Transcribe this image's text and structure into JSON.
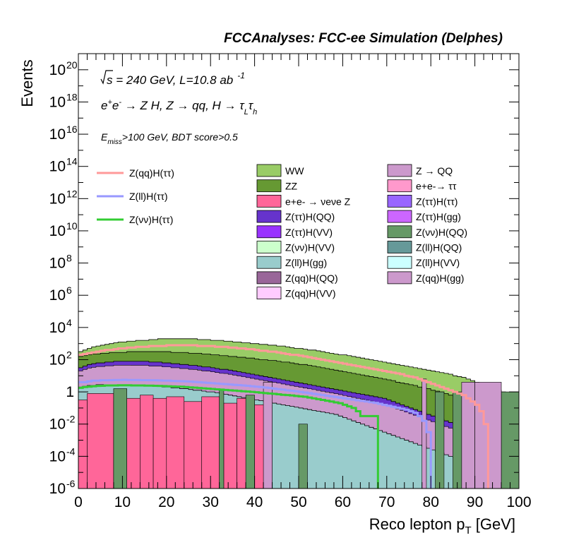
{
  "chart_data": {
    "type": "area",
    "header": "FCCAnalyses: FCC-ee Simulation (Delphes)",
    "xlabel": "Reco lepton p",
    "xlabel_sub": "T",
    "xlabel_unit": " [GeV]",
    "ylabel": "Events",
    "xlim": [
      0,
      100
    ],
    "ylim": [
      1e-06,
      1e+21
    ],
    "yscale": "log",
    "x_ticks": [
      0,
      10,
      20,
      30,
      40,
      50,
      60,
      70,
      80,
      90,
      100
    ],
    "y_ticks": [
      {
        "value": 1e-06,
        "base": "10",
        "exp": "-6"
      },
      {
        "value": 0.0001,
        "base": "10",
        "exp": "-4"
      },
      {
        "value": 0.01,
        "base": "10",
        "exp": "-2"
      },
      {
        "value": 1,
        "base": "1",
        "exp": ""
      },
      {
        "value": 100.0,
        "base": "10",
        "exp": "2"
      },
      {
        "value": 10000.0,
        "base": "10",
        "exp": "4"
      },
      {
        "value": 1000000.0,
        "base": "10",
        "exp": "6"
      },
      {
        "value": 100000000.0,
        "base": "10",
        "exp": "8"
      },
      {
        "value": 10000000000.0,
        "base": "10",
        "exp": "10"
      },
      {
        "value": 1000000000000.0,
        "base": "10",
        "exp": "12"
      },
      {
        "value": 100000000000000.0,
        "base": "10",
        "exp": "14"
      },
      {
        "value": 1e+16,
        "base": "10",
        "exp": "16"
      },
      {
        "value": 1e+18,
        "base": "10",
        "exp": "18"
      },
      {
        "value": 1e+20,
        "base": "10",
        "exp": "20"
      }
    ],
    "annotations": {
      "line1_a": "s",
      "line1_b": " = 240 GeV, L=10.8 ab",
      "line1_c": "-1",
      "line2_a": "e",
      "line2_b": "+",
      "line2_c": "e",
      "line2_d": "-",
      "line2_e": " → Z H, Z  → qq, H  → ",
      "line2_f": "τ",
      "line2_g": "L",
      "line2_h": "τ",
      "line2_i": "h",
      "line3_a": "E",
      "line3_b": "miss",
      "line3_c": ">100 GeV, BDT score>0.5"
    },
    "signal_legend": [
      {
        "name": "Z(qq)H(ττ)",
        "color": "#ff9999"
      },
      {
        "name": "Z(ll)H(ττ)",
        "color": "#9999ff"
      },
      {
        "name": "Z(νν)H(ττ)",
        "color": "#33cc33"
      }
    ],
    "background_legend_col1": [
      {
        "name": "WW",
        "color": "#99cc66"
      },
      {
        "name": "ZZ",
        "color": "#669933"
      },
      {
        "name": "e+e- → νeνe Z",
        "color": "#ff6699"
      },
      {
        "name": "Z(ττ)H(QQ)",
        "color": "#6633cc"
      },
      {
        "name": "Z(ττ)H(VV)",
        "color": "#9933ff"
      },
      {
        "name": "Z(νν)H(VV)",
        "color": "#ccffcc"
      },
      {
        "name": "Z(ll)H(gg)",
        "color": "#99cccc"
      },
      {
        "name": "Z(qq)H(QQ)",
        "color": "#996699"
      },
      {
        "name": "Z(qq)H(VV)",
        "color": "#ffccff"
      }
    ],
    "background_legend_col2": [
      {
        "name": "Z → QQ",
        "color": "#cc99cc"
      },
      {
        "name": "e+e-→ ττ",
        "color": "#ff99cc"
      },
      {
        "name": "Z(ττ)H(ττ)",
        "color": "#9966ff"
      },
      {
        "name": "Z(ττ)H(gg)",
        "color": "#cc66ff"
      },
      {
        "name": "Z(νν)H(QQ)",
        "color": "#669966"
      },
      {
        "name": "Z(ll)H(QQ)",
        "color": "#669999"
      },
      {
        "name": "Z(ll)H(VV)",
        "color": "#ccffff"
      },
      {
        "name": "Z(qq)H(gg)",
        "color": "#cc99cc"
      }
    ],
    "stack_top_log10": [
      2.5,
      2.6,
      2.7,
      2.8,
      2.85,
      2.9,
      2.95,
      3.0,
      3.05,
      3.1,
      3.1,
      3.15,
      3.15,
      3.2,
      3.2,
      3.2,
      3.25,
      3.25,
      3.3,
      3.3,
      3.3,
      3.3,
      3.3,
      3.3,
      3.3,
      3.3,
      3.3,
      3.25,
      3.25,
      3.25,
      3.2,
      3.2,
      3.2,
      3.15,
      3.15,
      3.1,
      3.1,
      3.05,
      3.05,
      3.0,
      3.0,
      2.95,
      2.95,
      2.9,
      2.9,
      2.85,
      2.85,
      2.8,
      2.75,
      2.7,
      2.7,
      2.65,
      2.6,
      2.6,
      2.55,
      2.5,
      2.45,
      2.4,
      2.35,
      2.3,
      2.3,
      2.25,
      2.2,
      2.15,
      2.1,
      2.05,
      2.0,
      1.95,
      1.9,
      1.85,
      1.8,
      1.75,
      1.7,
      1.65,
      1.6,
      1.55,
      1.5,
      1.45,
      1.4,
      1.35,
      1.3,
      1.25,
      1.2,
      1.15,
      1.1,
      1.0,
      0.95,
      0.9,
      0.8,
      0.7,
      0.6,
      0.5,
      0.4,
      0.3,
      0.2,
      0.1,
      0.0,
      -0.1,
      -0.3,
      -0.5
    ],
    "zz_top_log10": [
      2.2,
      2.25,
      2.3,
      2.35,
      2.35,
      2.4,
      2.4,
      2.45,
      2.45,
      2.45,
      2.45,
      2.5,
      2.5,
      2.5,
      2.5,
      2.5,
      2.5,
      2.5,
      2.5,
      2.5,
      2.5,
      2.45,
      2.45,
      2.45,
      2.45,
      2.4,
      2.4,
      2.4,
      2.35,
      2.35,
      2.3,
      2.3,
      2.25,
      2.25,
      2.2,
      2.2,
      2.15,
      2.15,
      2.1,
      2.1,
      2.05,
      2.0,
      2.0,
      1.95,
      1.95,
      1.9,
      1.85,
      1.85,
      1.8,
      1.75,
      1.7,
      1.7,
      1.65,
      1.6,
      1.55,
      1.5,
      1.45,
      1.4,
      1.35,
      1.3,
      1.25,
      1.2,
      1.15,
      1.1,
      1.05,
      1.0,
      0.95,
      0.9,
      0.85,
      0.8,
      0.75,
      0.7,
      0.6,
      0.55,
      0.5,
      0.45,
      0.4,
      0.3,
      0.25,
      0.2,
      0.1,
      0.05,
      0.0,
      -0.1,
      -0.2,
      -0.3,
      -0.4,
      -0.5,
      -0.6,
      -0.7,
      -0.8,
      -0.9,
      -1.0,
      -1.1,
      -1.2,
      -1.3,
      -1.4,
      -1.5,
      -1.6,
      -1.7
    ],
    "mid_top_log10": [
      1.5,
      1.6,
      1.7,
      1.75,
      1.8,
      1.8,
      1.85,
      1.85,
      1.9,
      1.9,
      1.9,
      1.9,
      1.9,
      1.9,
      1.9,
      1.9,
      1.85,
      1.85,
      1.85,
      1.8,
      1.8,
      1.75,
      1.75,
      1.7,
      1.7,
      1.65,
      1.65,
      1.6,
      1.55,
      1.55,
      1.5,
      1.45,
      1.4,
      1.4,
      1.35,
      1.3,
      1.25,
      1.2,
      1.15,
      1.1,
      1.05,
      1.0,
      0.95,
      0.9,
      0.85,
      0.8,
      0.75,
      0.7,
      0.65,
      0.6,
      0.55,
      0.5,
      0.45,
      0.4,
      0.35,
      0.3,
      0.25,
      0.2,
      0.15,
      0.1,
      0.05,
      0.0,
      -0.05,
      -0.1,
      -0.15,
      -0.2,
      -0.25,
      -0.3,
      -0.35,
      -0.4,
      -0.5,
      -0.6,
      -0.7,
      -0.8,
      -0.9,
      -1.0,
      -1.1,
      -1.2,
      -1.3,
      -1.4,
      -1.5,
      -1.6,
      -1.7,
      -1.8,
      -1.9,
      -2.0,
      -2.2,
      -2.4,
      -2.6,
      -2.8,
      -3.0,
      -3.2,
      -3.4,
      -3.6,
      -3.8,
      -4.0,
      -4.2,
      -4.4,
      -4.6,
      -4.8
    ],
    "tealbg_top_log10": [
      0.3,
      0.35,
      0.4,
      0.4,
      0.45,
      0.45,
      0.45,
      0.45,
      0.45,
      0.45,
      0.45,
      0.45,
      0.4,
      0.4,
      0.4,
      0.4,
      0.35,
      0.35,
      0.35,
      0.3,
      0.3,
      0.25,
      0.25,
      0.2,
      0.2,
      0.15,
      0.1,
      0.1,
      0.05,
      0.0,
      0.0,
      -0.05,
      -0.1,
      -0.15,
      -0.2,
      -0.25,
      -0.3,
      -0.35,
      -0.4,
      -0.45,
      -0.5,
      -0.55,
      -0.6,
      -0.65,
      -0.7,
      -0.75,
      -0.8,
      -0.85,
      -0.9,
      -0.95,
      -1.0,
      -1.05,
      -1.1,
      -1.15,
      -1.2,
      -1.25,
      -1.3,
      -1.35,
      -1.4,
      -1.5,
      -1.6,
      -1.7,
      -1.8,
      -1.9,
      -2.0,
      -2.1,
      -2.2,
      -2.3,
      -2.4,
      -2.5,
      -2.6,
      -2.7,
      -2.8,
      -2.9,
      -3.0,
      -3.1,
      -3.2,
      -3.3,
      -3.4,
      -3.5,
      -3.6,
      -3.7,
      -3.8,
      -3.9,
      -4.0,
      -4.1,
      -4.2,
      -4.3,
      -4.4,
      -4.5,
      -4.6,
      -4.7,
      -4.8,
      -4.9,
      -5.0,
      -5.1,
      -5.2,
      -5.3,
      -5.4,
      -5.5
    ],
    "pink_bins": [
      {
        "x0": 0,
        "x1": 2,
        "top": -0.5,
        "color": "#ff6699"
      },
      {
        "x0": 2,
        "x1": 8,
        "top": -0.1,
        "color": "#ff6699"
      },
      {
        "x0": 8,
        "x1": 11,
        "top": -0.6,
        "color": "#ff6699"
      },
      {
        "x0": 11,
        "x1": 14,
        "top": -0.4,
        "color": "#ff6699"
      },
      {
        "x0": 14,
        "x1": 17,
        "top": -0.2,
        "color": "#ff6699"
      },
      {
        "x0": 17,
        "x1": 20,
        "top": -0.4,
        "color": "#ff6699"
      },
      {
        "x0": 20,
        "x1": 24,
        "top": -0.3,
        "color": "#ff6699"
      },
      {
        "x0": 24,
        "x1": 28,
        "top": -0.6,
        "color": "#ff6699"
      },
      {
        "x0": 28,
        "x1": 32,
        "top": -0.3,
        "color": "#ff6699"
      },
      {
        "x0": 33,
        "x1": 36,
        "top": -0.7,
        "color": "#ff6699"
      },
      {
        "x0": 36,
        "x1": 40,
        "top": -0.4,
        "color": "#ff6699"
      },
      {
        "x0": 40,
        "x1": 44,
        "top": -0.8,
        "color": "#ff6699"
      }
    ],
    "signal_qq": [
      2.3,
      2.35,
      2.4,
      2.45,
      2.5,
      2.55,
      2.6,
      2.6,
      2.65,
      2.7,
      2.7,
      2.75,
      2.75,
      2.8,
      2.8,
      2.8,
      2.85,
      2.85,
      2.85,
      2.85,
      2.9,
      2.9,
      2.9,
      2.9,
      2.9,
      2.9,
      2.9,
      2.85,
      2.85,
      2.85,
      2.85,
      2.8,
      2.8,
      2.8,
      2.75,
      2.75,
      2.7,
      2.7,
      2.65,
      2.65,
      2.6,
      2.55,
      2.55,
      2.5,
      2.5,
      2.45,
      2.4,
      2.35,
      2.3,
      2.3,
      2.25,
      2.2,
      2.15,
      2.1,
      2.05,
      2.0,
      1.95,
      1.9,
      1.85,
      1.8,
      1.75,
      1.7,
      1.65,
      1.6,
      1.55,
      1.5,
      1.45,
      1.4,
      1.35,
      1.3,
      1.25,
      1.2,
      1.15,
      1.1,
      1.0,
      0.95,
      0.9,
      0.8,
      0.7,
      0.6,
      0.5,
      0.4,
      0.3,
      0.2,
      0.1,
      0.0,
      -0.1,
      -0.2,
      -0.4,
      -0.6,
      -0.8,
      -1.2,
      -2.0,
      -6.5,
      -6.5,
      -6.5,
      -6.5,
      -6.5,
      -6.5,
      -6.5
    ],
    "signal_ll": [
      0.6,
      0.6,
      0.65,
      0.7,
      0.7,
      0.72,
      0.72,
      0.73,
      0.74,
      0.74,
      0.75,
      0.74,
      0.74,
      0.74,
      0.73,
      0.73,
      0.72,
      0.72,
      0.71,
      0.7,
      0.7,
      0.68,
      0.67,
      0.66,
      0.65,
      0.64,
      0.62,
      0.6,
      0.58,
      0.56,
      0.54,
      0.52,
      0.5,
      0.48,
      0.46,
      0.44,
      0.42,
      0.4,
      0.38,
      0.35,
      0.32,
      0.3,
      0.27,
      0.24,
      0.2,
      0.17,
      0.14,
      0.1,
      0.07,
      0.04,
      0.0,
      -0.04,
      -0.08,
      -0.12,
      -0.16,
      -0.2,
      -0.24,
      -0.28,
      -0.32,
      -0.36,
      -0.4,
      -0.44,
      -0.48,
      -0.52,
      -0.56,
      -0.6,
      -0.64,
      -0.68,
      -0.74,
      -0.8,
      -0.86,
      -0.92,
      -0.98,
      -1.04,
      -1.1,
      -1.2,
      -1.3,
      -1.5,
      -1.8,
      -2.5,
      -6.5,
      -6.5,
      -6.5,
      -6.5,
      -6.5,
      -6.5,
      -6.5,
      -6.5,
      -6.5,
      -6.5,
      -6.5,
      -6.5,
      -6.5,
      -6.5,
      -6.5,
      -6.5,
      -6.5,
      -6.5,
      -6.5,
      -6.5
    ],
    "signal_vv": [
      0.25,
      0.3,
      0.32,
      0.35,
      0.37,
      0.38,
      0.4,
      0.4,
      0.4,
      0.41,
      0.41,
      0.41,
      0.4,
      0.4,
      0.4,
      0.39,
      0.39,
      0.38,
      0.37,
      0.36,
      0.35,
      0.34,
      0.33,
      0.32,
      0.3,
      0.28,
      0.26,
      0.24,
      0.22,
      0.2,
      0.18,
      0.16,
      0.14,
      0.12,
      0.1,
      0.08,
      0.06,
      0.04,
      0.02,
      0.0,
      -0.02,
      -0.05,
      -0.08,
      -0.1,
      -0.12,
      -0.15,
      -0.18,
      -0.2,
      -0.22,
      -0.25,
      -0.28,
      -0.3,
      -0.35,
      -0.4,
      -0.45,
      -0.5,
      -0.55,
      -0.6,
      -0.65,
      -0.7,
      -0.8,
      -0.9,
      -1.0,
      -1.2,
      -1.5,
      -1.5,
      -1.5,
      -1.5,
      -6.5,
      -6.5,
      -6.5,
      -6.5,
      -6.5,
      -6.5,
      -6.5,
      -6.5,
      -6.5,
      -6.5,
      -6.5,
      -6.5,
      -6.5,
      -6.5,
      -6.5,
      -6.5,
      -6.5,
      -6.5,
      -6.5,
      -6.5,
      -6.5,
      -6.5,
      -6.5,
      -6.5,
      -6.5,
      -6.5,
      -6.5,
      -6.5,
      -6.5,
      -6.5,
      -6.5,
      -6.5
    ]
  }
}
